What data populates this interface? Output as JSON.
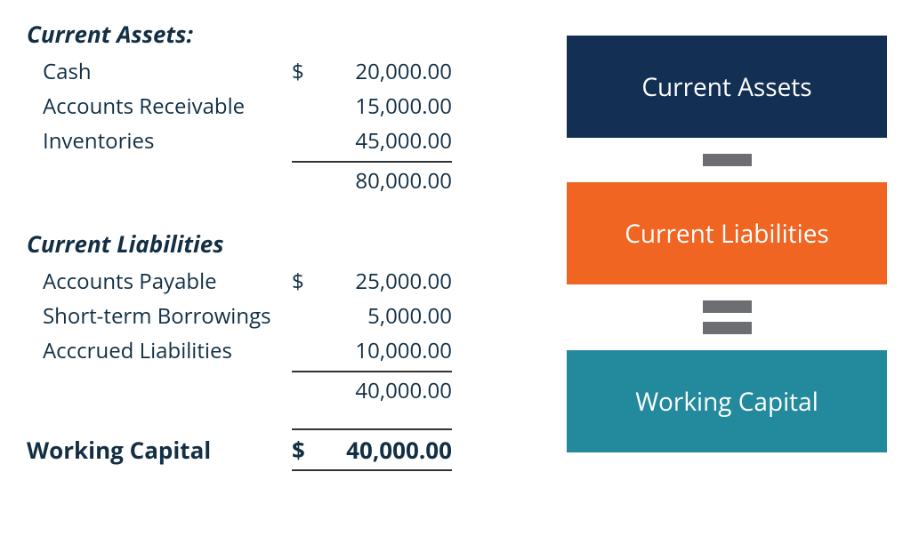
{
  "left": {
    "assets_header": "Current Assets:",
    "assets": [
      {
        "label": "Cash",
        "currency": "$",
        "value": "20,000.00"
      },
      {
        "label": "Accounts Receivable",
        "currency": "",
        "value": "15,000.00"
      },
      {
        "label": "Inventories",
        "currency": "",
        "value": "45,000.00"
      }
    ],
    "assets_total": "80,000.00",
    "liab_header": "Current Liabilities",
    "liabilities": [
      {
        "label": "Accounts Payable",
        "currency": "$",
        "value": "25,000.00"
      },
      {
        "label": "Short-term Borrowings",
        "currency": "",
        "value": "5,000.00"
      },
      {
        "label": "Acccrued Liabilities",
        "currency": "",
        "value": "10,000.00"
      }
    ],
    "liab_total": "40,000.00",
    "wc_label": "Working Capital",
    "wc_currency": "$",
    "wc_value": "40,000.00"
  },
  "right": {
    "block1_label": "Current Assets",
    "block2_label": "Current Liabilities",
    "block3_label": "Working Capital",
    "block1_color": "#132f53",
    "block2_color": "#f16522",
    "block3_color": "#23899c",
    "op_bar_color": "#6d6e71"
  },
  "style": {
    "text_color": "#132f45",
    "rule_color": "#333333",
    "body_fontsize": 24,
    "header_fontsize": 26,
    "block_fontsize": 28,
    "block_text_color": "#ffffff",
    "background": "#ffffff"
  }
}
